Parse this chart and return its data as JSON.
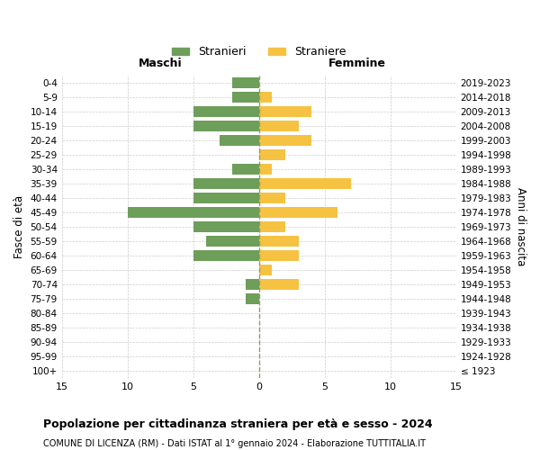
{
  "age_groups": [
    "100+",
    "95-99",
    "90-94",
    "85-89",
    "80-84",
    "75-79",
    "70-74",
    "65-69",
    "60-64",
    "55-59",
    "50-54",
    "45-49",
    "40-44",
    "35-39",
    "30-34",
    "25-29",
    "20-24",
    "15-19",
    "10-14",
    "5-9",
    "0-4"
  ],
  "birth_years": [
    "≤ 1923",
    "1924-1928",
    "1929-1933",
    "1934-1938",
    "1939-1943",
    "1944-1948",
    "1949-1953",
    "1954-1958",
    "1959-1963",
    "1964-1968",
    "1969-1973",
    "1974-1978",
    "1979-1983",
    "1984-1988",
    "1989-1993",
    "1994-1998",
    "1999-2003",
    "2004-2008",
    "2009-2013",
    "2014-2018",
    "2019-2023"
  ],
  "males": [
    0,
    0,
    0,
    0,
    0,
    1,
    1,
    0,
    5,
    4,
    5,
    10,
    5,
    5,
    2,
    0,
    3,
    5,
    5,
    2,
    2
  ],
  "females": [
    0,
    0,
    0,
    0,
    0,
    0,
    3,
    1,
    3,
    3,
    2,
    6,
    2,
    7,
    1,
    2,
    4,
    3,
    4,
    1,
    0
  ],
  "male_color": "#6d9e5a",
  "female_color": "#f5c242",
  "background_color": "#ffffff",
  "grid_color": "#cccccc",
  "title": "Popolazione per cittadinanza straniera per età e sesso - 2024",
  "subtitle": "COMUNE DI LICENZA (RM) - Dati ISTAT al 1° gennaio 2024 - Elaborazione TUTTITALIA.IT",
  "xlabel_left": "Maschi",
  "xlabel_right": "Femmine",
  "ylabel_left": "Fasce di età",
  "ylabel_right": "Anni di nascita",
  "legend_males": "Stranieri",
  "legend_females": "Straniere",
  "xlim": 15
}
